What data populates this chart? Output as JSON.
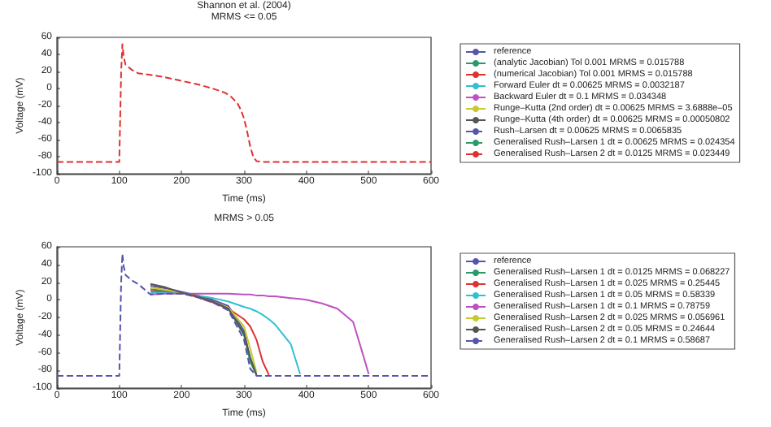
{
  "chart_data": [
    {
      "type": "line",
      "title": "Shannon et al. (2004)",
      "subtitle": "MRMS <= 0.05",
      "xlabel": "Time (ms)",
      "ylabel": "Voltage (mV)",
      "xlim": [
        0,
        600
      ],
      "xticks": [
        0,
        100,
        200,
        300,
        400,
        500,
        600
      ],
      "ylim": [
        -100,
        60
      ],
      "yticks": [
        -100,
        -80,
        -60,
        -40,
        -20,
        0,
        20,
        40,
        60
      ],
      "grid": false,
      "legend": "right",
      "marker": "none",
      "x": [
        0,
        100,
        103,
        105,
        107,
        110,
        115,
        120,
        130,
        140,
        150,
        175,
        200,
        225,
        250,
        270,
        280,
        290,
        295,
        300,
        305,
        310,
        315,
        320,
        330,
        400,
        600
      ],
      "series": [
        {
          "name": "reference",
          "color": "#5555aa",
          "line_style": "solid",
          "values": [
            null,
            null,
            null,
            null,
            null,
            null,
            null,
            null,
            null,
            null,
            null,
            null,
            null,
            null,
            null,
            null,
            null,
            null,
            null,
            null,
            null,
            null,
            null,
            null,
            null,
            null,
            null
          ]
        },
        {
          "name": "(analytic Jacobian) Tol 0.001 MRMS = 0.015788",
          "color": "#2a9a6a",
          "line_style": "solid",
          "values": [
            null,
            null,
            null,
            null,
            null,
            null,
            null,
            null,
            null,
            null,
            null,
            null,
            null,
            null,
            null,
            null,
            null,
            null,
            null,
            null,
            null,
            null,
            null,
            null,
            null,
            null,
            null
          ]
        },
        {
          "name": "(numerical Jacobian) Tol 0.001 MRMS = 0.015788",
          "color": "#e03030",
          "line_style": "solid",
          "values": [
            null,
            null,
            null,
            null,
            null,
            null,
            null,
            null,
            null,
            null,
            null,
            null,
            null,
            null,
            null,
            null,
            null,
            null,
            null,
            null,
            null,
            null,
            null,
            null,
            null,
            null,
            null
          ]
        },
        {
          "name": "Forward Euler dt = 0.00625 MRMS = 0.0032187",
          "color": "#30c0d0",
          "line_style": "solid",
          "values": [
            null,
            null,
            null,
            null,
            null,
            null,
            null,
            null,
            null,
            null,
            null,
            null,
            null,
            null,
            null,
            null,
            null,
            null,
            null,
            null,
            null,
            null,
            null,
            null,
            null,
            null,
            null
          ]
        },
        {
          "name": "Backward Euler dt = 0.1 MRMS = 0.034348",
          "color": "#c050c0",
          "line_style": "solid",
          "values": [
            null,
            null,
            null,
            null,
            null,
            null,
            null,
            null,
            null,
            null,
            null,
            null,
            null,
            null,
            null,
            null,
            null,
            null,
            null,
            null,
            null,
            null,
            null,
            null,
            null,
            null,
            null
          ]
        },
        {
          "name": "Runge–Kutta (2nd order) dt = 0.00625 MRMS = 3.6888e–05",
          "color": "#c8c830",
          "line_style": "solid",
          "values": [
            null,
            null,
            null,
            null,
            null,
            null,
            null,
            null,
            null,
            null,
            null,
            null,
            null,
            null,
            null,
            null,
            null,
            null,
            null,
            null,
            null,
            null,
            null,
            null,
            null,
            null,
            null
          ]
        },
        {
          "name": "Runge–Kutta (4th order) dt = 0.00625 MRMS = 0.00050802",
          "color": "#555555",
          "line_style": "solid",
          "values": [
            null,
            null,
            null,
            null,
            null,
            null,
            null,
            null,
            null,
            null,
            null,
            null,
            null,
            null,
            null,
            null,
            null,
            null,
            null,
            null,
            null,
            null,
            null,
            null,
            null,
            null,
            null
          ]
        },
        {
          "name": "Rush–Larsen dt = 0.00625 MRMS = 0.0065835",
          "color": "#5555aa",
          "line_style": "dashed",
          "values": [
            null,
            null,
            null,
            null,
            null,
            null,
            null,
            null,
            null,
            null,
            null,
            null,
            null,
            null,
            null,
            null,
            null,
            null,
            null,
            null,
            null,
            null,
            null,
            null,
            null,
            null,
            null
          ]
        },
        {
          "name": "Generalised Rush–Larsen 1 dt = 0.00625 MRMS = 0.024354",
          "color": "#2a9a6a",
          "line_style": "dashed",
          "values": [
            null,
            null,
            null,
            null,
            null,
            null,
            null,
            null,
            null,
            null,
            null,
            null,
            null,
            null,
            null,
            null,
            null,
            null,
            null,
            null,
            null,
            null,
            null,
            null,
            null,
            null,
            null
          ]
        },
        {
          "name": "Generalised Rush–Larsen 2 dt = 0.0125 MRMS = 0.023449",
          "color": "#e03030",
          "line_style": "dashed",
          "values": [
            -86,
            -86,
            20,
            52,
            38,
            28,
            25,
            22,
            18,
            17,
            16,
            13,
            9,
            5,
            0,
            -5,
            -10,
            -18,
            -25,
            -35,
            -50,
            -68,
            -80,
            -85,
            -86,
            -86,
            -86
          ]
        }
      ]
    },
    {
      "type": "line",
      "title": "MRMS > 0.05",
      "xlabel": "Time (ms)",
      "ylabel": "Voltage (mV)",
      "xlim": [
        0,
        600
      ],
      "xticks": [
        0,
        100,
        200,
        300,
        400,
        500,
        600
      ],
      "ylim": [
        -100,
        60
      ],
      "yticks": [
        -100,
        -80,
        -60,
        -40,
        -20,
        0,
        20,
        40,
        60
      ],
      "grid": false,
      "legend": "right",
      "marker": "none",
      "x": [
        0,
        100,
        103,
        105,
        107,
        110,
        120,
        130,
        150,
        175,
        200,
        225,
        250,
        275,
        300,
        310,
        320,
        330,
        340,
        350,
        375,
        390,
        400,
        425,
        450,
        475,
        490,
        500,
        510,
        600
      ],
      "series": [
        {
          "name": "reference",
          "color": "#5555aa",
          "line_style": "solid",
          "values": [
            null,
            null,
            null,
            null,
            null,
            null,
            null,
            null,
            16,
            13,
            9,
            5,
            0,
            -7,
            -35,
            -68,
            -85,
            null,
            null,
            null,
            null,
            null,
            null,
            null,
            null,
            null,
            null,
            null,
            null,
            null
          ]
        },
        {
          "name": "Generalised Rush–Larsen 1 dt = 0.0125 MRMS = 0.068227",
          "color": "#2a9a6a",
          "line_style": "solid",
          "values": [
            null,
            null,
            null,
            null,
            null,
            null,
            null,
            null,
            12,
            10,
            8,
            4,
            -2,
            -10,
            -40,
            -70,
            -85,
            null,
            null,
            null,
            null,
            null,
            null,
            null,
            null,
            null,
            null,
            null,
            null,
            null
          ]
        },
        {
          "name": "Generalised Rush–Larsen 1 dt = 0.025 MRMS = 0.25445",
          "color": "#e03030",
          "line_style": "solid",
          "values": [
            null,
            null,
            null,
            null,
            null,
            null,
            null,
            null,
            10,
            9,
            8,
            3,
            -3,
            -10,
            -22,
            -30,
            -45,
            -70,
            -85,
            null,
            null,
            null,
            null,
            null,
            null,
            null,
            null,
            null,
            null,
            null
          ]
        },
        {
          "name": "Generalised Rush–Larsen 1 dt = 0.05 MRMS = 0.58339",
          "color": "#30c0d0",
          "line_style": "solid",
          "values": [
            null,
            null,
            null,
            null,
            null,
            null,
            null,
            null,
            8,
            8,
            7,
            5,
            2,
            -2,
            -8,
            -10,
            -13,
            -17,
            -22,
            -28,
            -50,
            -84,
            null,
            null,
            null,
            null,
            null,
            null,
            null,
            null
          ]
        },
        {
          "name": "Generalised Rush–Larsen 1 dt = 0.1 MRMS = 0.78759",
          "color": "#c050c0",
          "line_style": "solid",
          "values": [
            null,
            null,
            null,
            null,
            null,
            null,
            null,
            null,
            6,
            7,
            7,
            7,
            7,
            7,
            6,
            6,
            5,
            5,
            4,
            4,
            2,
            1,
            0,
            -4,
            -10,
            -25,
            -60,
            -84,
            null,
            null
          ]
        },
        {
          "name": "Generalised Rush–Larsen 2 dt = 0.025 MRMS = 0.056961",
          "color": "#c8c830",
          "line_style": "solid",
          "values": [
            null,
            null,
            null,
            null,
            null,
            null,
            null,
            null,
            14,
            11,
            8,
            4,
            -2,
            -9,
            -30,
            -55,
            -82,
            null,
            null,
            null,
            null,
            null,
            null,
            null,
            null,
            null,
            null,
            null,
            null,
            null
          ]
        },
        {
          "name": "Generalised Rush–Larsen 2 dt = 0.05 MRMS = 0.24644",
          "color": "#555555",
          "line_style": "solid",
          "values": [
            null,
            null,
            null,
            null,
            null,
            null,
            null,
            null,
            18,
            14,
            8,
            4,
            -2,
            -10,
            -38,
            -65,
            -85,
            null,
            null,
            null,
            null,
            null,
            null,
            null,
            null,
            null,
            null,
            null,
            null,
            null
          ]
        },
        {
          "name": "Generalised Rush–Larsen 2 dt = 0.1 MRMS = 0.58687",
          "color": "#5555aa",
          "line_style": "dashed",
          "values": [
            -86,
            -86,
            20,
            52,
            38,
            28,
            22,
            18,
            6,
            7,
            7,
            3,
            -3,
            -12,
            -45,
            -78,
            -86,
            -86,
            -86,
            -86,
            -86,
            -86,
            -86,
            -86,
            -86,
            -86,
            -86,
            -86,
            -86,
            -86
          ]
        }
      ]
    }
  ]
}
